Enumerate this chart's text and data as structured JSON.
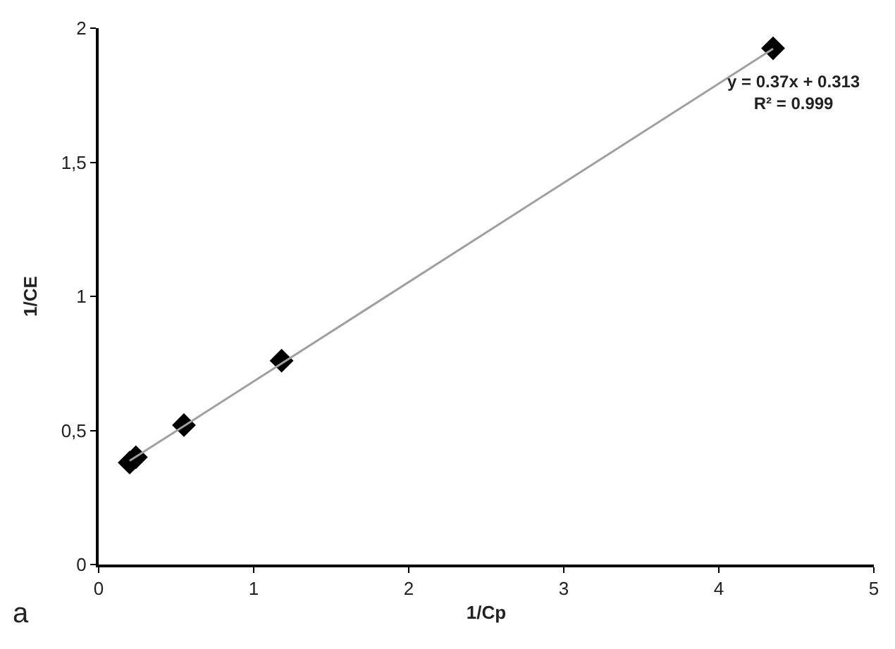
{
  "chart_data": {
    "type": "scatter",
    "xlabel": "1/Cp",
    "ylabel": "1/CE",
    "xlim": [
      0,
      5
    ],
    "xticks": [
      0,
      1,
      2,
      3,
      4,
      5
    ],
    "ylim": [
      0,
      2
    ],
    "yticks": [
      0,
      {
        "value": 0.5,
        "label": "0,5"
      },
      1,
      {
        "value": 1.5,
        "label": "1,5"
      },
      2
    ],
    "legend": false,
    "marker": "diamond",
    "series": [
      {
        "color": "#000000",
        "x": [
          0.2,
          0.24,
          0.55,
          1.18,
          4.35
        ],
        "values": [
          0.38,
          0.4,
          0.52,
          0.76,
          1.925
        ]
      },
      {
        "type": "line",
        "color": "#a0a0a0",
        "x": [
          0.2,
          4.35
        ],
        "values": [
          0.387,
          1.923
        ],
        "line_style": "solid",
        "marker": "none"
      }
    ],
    "annotations": [
      "y = 0.37x + 0.313\nR² = 0.999",
      "a"
    ]
  }
}
